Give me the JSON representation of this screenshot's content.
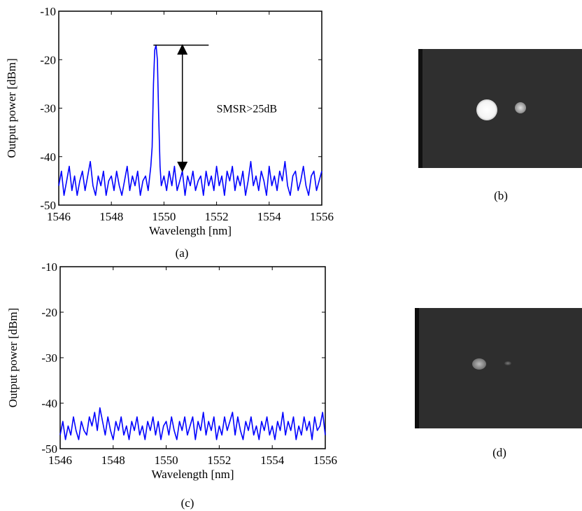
{
  "chart_data": [
    {
      "type": "line",
      "panel_label": "(a)",
      "xlabel": "Wavelength [nm]",
      "ylabel": "Output power [dBm]",
      "xlim": [
        1546,
        1556
      ],
      "ylim": [
        -50,
        -10
      ],
      "xticks": [
        1546,
        1548,
        1550,
        1552,
        1554,
        1556
      ],
      "yticks": [
        -10,
        -20,
        -30,
        -40,
        -50
      ],
      "xtick_labels": [
        "1546",
        "1548",
        "1550",
        "1552",
        "1554",
        "1556"
      ],
      "ytick_labels": [
        "-10",
        "-20",
        "-30",
        "-40",
        "-50"
      ],
      "grid": false,
      "series": [
        {
          "color": "#0000ff",
          "x": [
            1546.0,
            1546.1,
            1546.2,
            1546.3,
            1546.4,
            1546.5,
            1546.6,
            1546.7,
            1546.8,
            1546.9,
            1547.0,
            1547.1,
            1547.2,
            1547.3,
            1547.4,
            1547.5,
            1547.6,
            1547.7,
            1547.8,
            1547.9,
            1548.0,
            1548.1,
            1548.2,
            1548.3,
            1548.4,
            1548.5,
            1548.6,
            1548.7,
            1548.8,
            1548.9,
            1549.0,
            1549.1,
            1549.2,
            1549.3,
            1549.4,
            1549.5,
            1549.55,
            1549.6,
            1549.65,
            1549.7,
            1549.75,
            1549.8,
            1549.85,
            1549.9,
            1550.0,
            1550.1,
            1550.2,
            1550.3,
            1550.4,
            1550.5,
            1550.6,
            1550.7,
            1550.8,
            1550.9,
            1551.0,
            1551.1,
            1551.2,
            1551.3,
            1551.4,
            1551.5,
            1551.6,
            1551.7,
            1551.8,
            1551.9,
            1552.0,
            1552.1,
            1552.2,
            1552.3,
            1552.4,
            1552.5,
            1552.6,
            1552.7,
            1552.8,
            1552.9,
            1553.0,
            1553.1,
            1553.2,
            1553.3,
            1553.4,
            1553.5,
            1553.6,
            1553.7,
            1553.8,
            1553.9,
            1554.0,
            1554.1,
            1554.2,
            1554.3,
            1554.4,
            1554.5,
            1554.6,
            1554.7,
            1554.8,
            1554.9,
            1555.0,
            1555.1,
            1555.2,
            1555.3,
            1555.4,
            1555.5,
            1555.6,
            1555.7,
            1555.8,
            1555.9,
            1556.0
          ],
          "y": [
            -46,
            -43,
            -48,
            -45,
            -42,
            -47,
            -44,
            -48,
            -45,
            -43,
            -47,
            -44,
            -41,
            -46,
            -48,
            -44,
            -46,
            -43,
            -48,
            -45,
            -44,
            -47,
            -43,
            -46,
            -48,
            -45,
            -42,
            -47,
            -44,
            -46,
            -43,
            -48,
            -45,
            -44,
            -47,
            -42,
            -38,
            -25,
            -18,
            -17,
            -20,
            -32,
            -42,
            -46,
            -44,
            -47,
            -43,
            -46,
            -42,
            -47,
            -45,
            -43,
            -48,
            -44,
            -46,
            -43,
            -47,
            -45,
            -44,
            -48,
            -43,
            -46,
            -44,
            -47,
            -42,
            -46,
            -44,
            -48,
            -43,
            -45,
            -42,
            -47,
            -44,
            -46,
            -43,
            -48,
            -45,
            -41,
            -46,
            -44,
            -47,
            -43,
            -45,
            -48,
            -42,
            -46,
            -44,
            -47,
            -43,
            -45,
            -41,
            -46,
            -48,
            -44,
            -43,
            -47,
            -45,
            -42,
            -46,
            -48,
            -44,
            -43,
            -47,
            -45,
            -43
          ]
        }
      ],
      "annotations": [
        {
          "text": "SMSR>25dB",
          "x": 1552.0,
          "y": -30
        }
      ],
      "arrow": {
        "x": 1550.7,
        "y_top": -17,
        "y_bottom": -43,
        "hline_x_start": 1549.6,
        "hline_x_end": 1551.7
      }
    },
    {
      "type": "line",
      "panel_label": "(c)",
      "xlabel": "Wavelength [nm]",
      "ylabel": "Output power [dBm]",
      "xlim": [
        1546,
        1556
      ],
      "ylim": [
        -50,
        -10
      ],
      "xticks": [
        1546,
        1548,
        1550,
        1552,
        1554,
        1556
      ],
      "yticks": [
        -10,
        -20,
        -30,
        -40,
        -50
      ],
      "xtick_labels": [
        "1546",
        "1548",
        "1550",
        "1552",
        "1554",
        "1556"
      ],
      "ytick_labels": [
        "-10",
        "-20",
        "-30",
        "-40",
        "-50"
      ],
      "grid": false,
      "series": [
        {
          "color": "#0000ff",
          "x": [
            1546.0,
            1546.1,
            1546.2,
            1546.3,
            1546.4,
            1546.5,
            1546.6,
            1546.7,
            1546.8,
            1546.9,
            1547.0,
            1547.1,
            1547.2,
            1547.3,
            1547.4,
            1547.5,
            1547.6,
            1547.7,
            1547.8,
            1547.9,
            1548.0,
            1548.1,
            1548.2,
            1548.3,
            1548.4,
            1548.5,
            1548.6,
            1548.7,
            1548.8,
            1548.9,
            1549.0,
            1549.1,
            1549.2,
            1549.3,
            1549.4,
            1549.5,
            1549.6,
            1549.7,
            1549.8,
            1549.9,
            1550.0,
            1550.1,
            1550.2,
            1550.3,
            1550.4,
            1550.5,
            1550.6,
            1550.7,
            1550.8,
            1550.9,
            1551.0,
            1551.1,
            1551.2,
            1551.3,
            1551.4,
            1551.5,
            1551.6,
            1551.7,
            1551.8,
            1551.9,
            1552.0,
            1552.1,
            1552.2,
            1552.3,
            1552.4,
            1552.5,
            1552.6,
            1552.7,
            1552.8,
            1552.9,
            1553.0,
            1553.1,
            1553.2,
            1553.3,
            1553.4,
            1553.5,
            1553.6,
            1553.7,
            1553.8,
            1553.9,
            1554.0,
            1554.1,
            1554.2,
            1554.3,
            1554.4,
            1554.5,
            1554.6,
            1554.7,
            1554.8,
            1554.9,
            1555.0,
            1555.1,
            1555.2,
            1555.3,
            1555.4,
            1555.5,
            1555.6,
            1555.7,
            1555.8,
            1555.9,
            1556.0
          ],
          "y": [
            -47,
            -44,
            -48,
            -45,
            -47,
            -43,
            -46,
            -48,
            -44,
            -46,
            -47,
            -43,
            -45,
            -42,
            -46,
            -41,
            -44,
            -47,
            -43,
            -46,
            -48,
            -44,
            -46,
            -43,
            -47,
            -45,
            -48,
            -44,
            -46,
            -43,
            -47,
            -45,
            -48,
            -44,
            -46,
            -43,
            -47,
            -44,
            -48,
            -45,
            -44,
            -47,
            -43,
            -46,
            -48,
            -44,
            -46,
            -43,
            -47,
            -45,
            -43,
            -48,
            -44,
            -46,
            -42,
            -47,
            -44,
            -46,
            -43,
            -48,
            -45,
            -47,
            -43,
            -46,
            -44,
            -42,
            -47,
            -43,
            -46,
            -48,
            -44,
            -46,
            -43,
            -47,
            -45,
            -48,
            -44,
            -46,
            -43,
            -47,
            -45,
            -48,
            -44,
            -46,
            -42,
            -47,
            -44,
            -46,
            -43,
            -48,
            -45,
            -47,
            -43,
            -46,
            -44,
            -48,
            -43,
            -46,
            -45,
            -42,
            -47
          ]
        }
      ]
    }
  ],
  "photos": [
    {
      "panel_label": "(b)",
      "spots": [
        {
          "brightness": "bright",
          "size": "large"
        },
        {
          "brightness": "medium",
          "size": "small"
        }
      ]
    },
    {
      "panel_label": "(d)",
      "spots": [
        {
          "brightness": "dim",
          "size": "medium"
        },
        {
          "brightness": "faint",
          "size": "tiny"
        }
      ]
    }
  ]
}
